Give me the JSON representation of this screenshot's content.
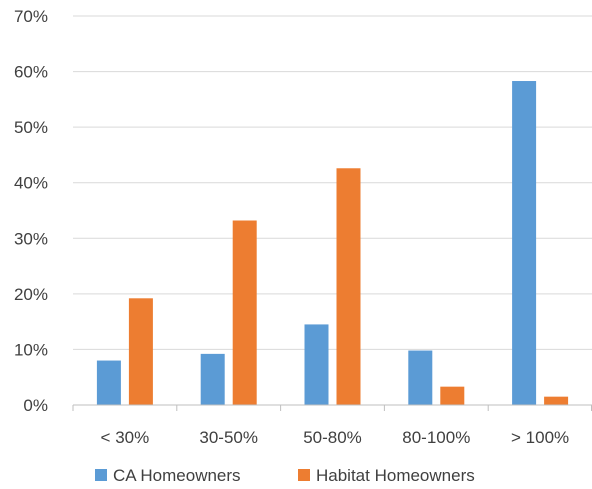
{
  "chart_data": {
    "type": "bar",
    "title": "",
    "xlabel": "",
    "ylabel": "",
    "categories": [
      "< 30%",
      "30-50%",
      "50-80%",
      "80-100%",
      "> 100%"
    ],
    "series": [
      {
        "name": "CA Homeowners",
        "color": "#5b9bd5",
        "values": [
          8,
          9.2,
          14.5,
          9.8,
          58.3
        ]
      },
      {
        "name": "Habitat Homeowners",
        "color": "#ed7d31",
        "values": [
          19.2,
          33.2,
          42.6,
          3.3,
          1.5
        ]
      }
    ],
    "ylim": [
      0,
      70
    ],
    "yticks": [
      "0%",
      "10%",
      "20%",
      "30%",
      "40%",
      "50%",
      "60%",
      "70%"
    ],
    "grid": true,
    "legend_position": "bottom"
  }
}
